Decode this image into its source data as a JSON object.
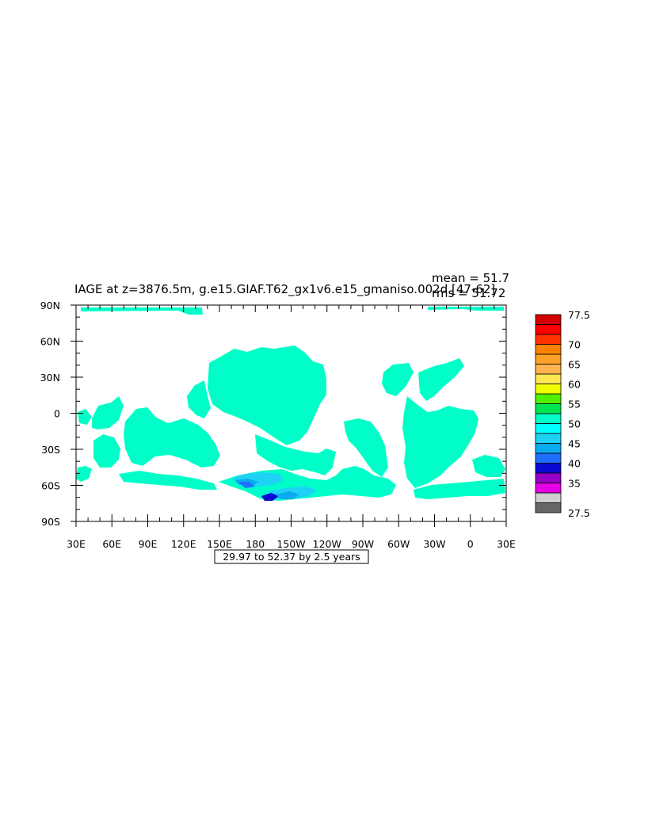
{
  "chart_data": {
    "type": "heatmap",
    "title": "IAGE at z=3876.5m, g.e15.GIAF.T62_gx1v6.e15_gmaniso.002d [47-62]",
    "stats": {
      "mean": "mean = 51.7",
      "rms": "rms = 51.72"
    },
    "x_ticks": [
      "30E",
      "60E",
      "90E",
      "120E",
      "150E",
      "180",
      "150W",
      "120W",
      "90W",
      "60W",
      "30W",
      "0",
      "30E"
    ],
    "y_ticks": [
      "90N",
      "60N",
      "30N",
      "0",
      "30S",
      "60S",
      "90S"
    ],
    "xlim": [
      30,
      390
    ],
    "ylim": [
      -90,
      90
    ],
    "time_range_label": "29.97 to 52.37 by 2.5 years",
    "colorbar": {
      "colors": [
        "#666666",
        "#cfcfcf",
        "#e600e6",
        "#9600c8",
        "#0a0ad2",
        "#1e6eff",
        "#0aaaf0",
        "#1ed2f5",
        "#00ffff",
        "#00ffc8",
        "#00e650",
        "#50f000",
        "#f0ff00",
        "#ffe650",
        "#ffb450",
        "#ffa028",
        "#fa8200",
        "#ff3200",
        "#ff0000",
        "#d20000"
      ],
      "labels": [
        {
          "text": "27.5",
          "at": 0
        },
        {
          "text": "35",
          "at": 3
        },
        {
          "text": "40",
          "at": 5
        },
        {
          "text": "45",
          "at": 7
        },
        {
          "text": "50",
          "at": 9
        },
        {
          "text": "55",
          "at": 11
        },
        {
          "text": "60",
          "at": 13
        },
        {
          "text": "65",
          "at": 15
        },
        {
          "text": "70",
          "at": 17
        },
        {
          "text": "77.5",
          "at": 20
        }
      ]
    },
    "dominant_value_range": [
      47.5,
      50
    ],
    "field_color": "#00ffc8",
    "low_value_color": "#1ed2f5",
    "lowest_value_colors": [
      "#0aaaf0",
      "#1e6eff",
      "#0a0ad2"
    ]
  }
}
